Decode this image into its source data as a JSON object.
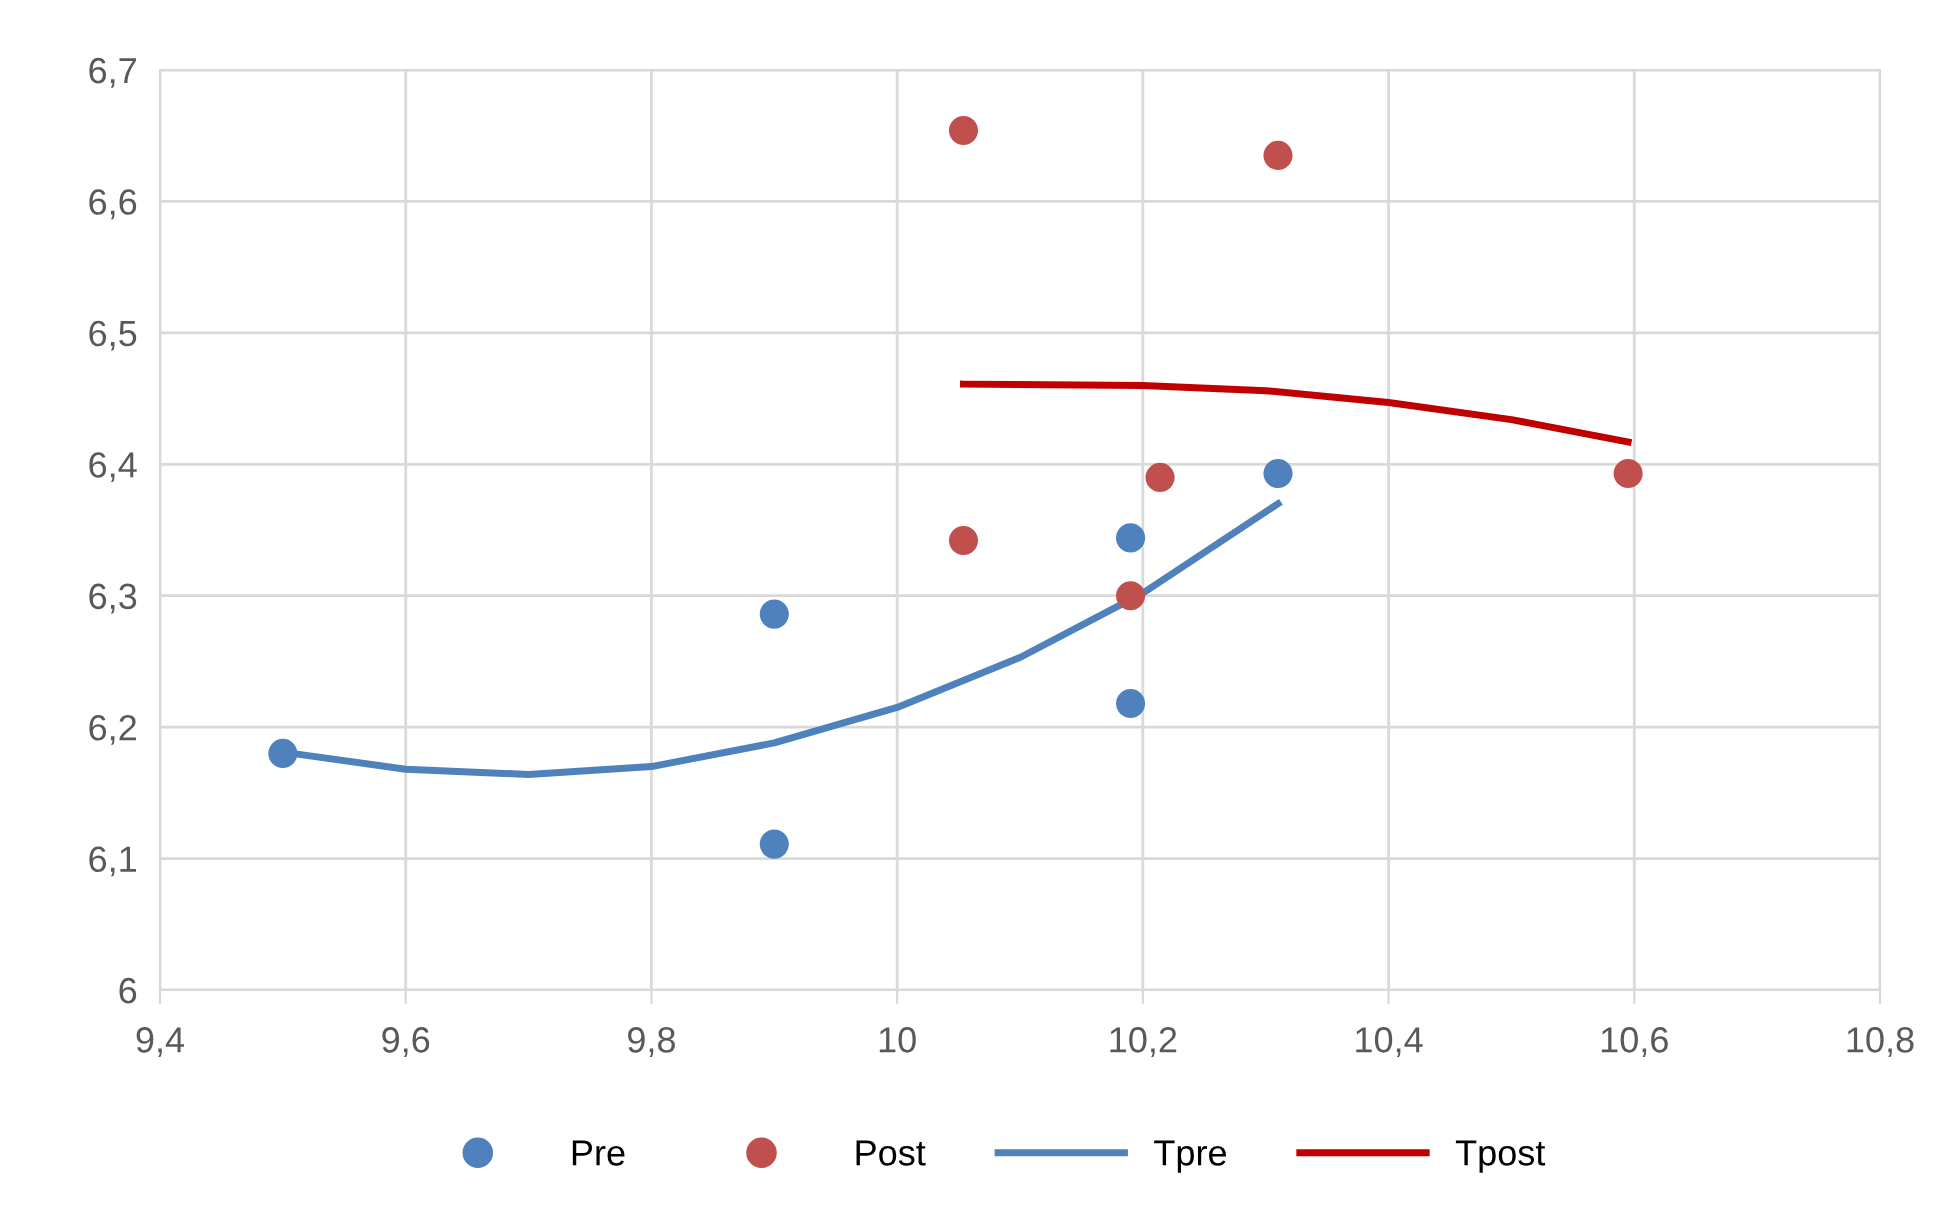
{
  "chart_data": {
    "type": "scatter",
    "xlim": [
      9.4,
      10.8
    ],
    "ylim": [
      6,
      6.7
    ],
    "xticks": [
      {
        "value": 9.4,
        "label": "9,4"
      },
      {
        "value": 9.6,
        "label": "9,6"
      },
      {
        "value": 9.8,
        "label": "9,8"
      },
      {
        "value": 10,
        "label": "10"
      },
      {
        "value": 10.2,
        "label": "10,2"
      },
      {
        "value": 10.4,
        "label": "10,4"
      },
      {
        "value": 10.6,
        "label": "10,6"
      },
      {
        "value": 10.8,
        "label": "10,8"
      }
    ],
    "yticks": [
      {
        "value": 6,
        "label": "6"
      },
      {
        "value": 6.1,
        "label": "6,1"
      },
      {
        "value": 6.2,
        "label": "6,2"
      },
      {
        "value": 6.3,
        "label": "6,3"
      },
      {
        "value": 6.4,
        "label": "6,4"
      },
      {
        "value": 6.5,
        "label": "6,5"
      },
      {
        "value": 6.6,
        "label": "6,6"
      },
      {
        "value": 6.7,
        "label": "6,7"
      }
    ],
    "grid": true,
    "legend": "bottom",
    "series": [
      {
        "name": "Pre",
        "marker": "circle",
        "color": "#4f81bd",
        "x": [
          9.5,
          9.9,
          9.9,
          10.19,
          10.19,
          10.31
        ],
        "values": [
          6.18,
          6.286,
          6.111,
          6.344,
          6.218,
          6.393
        ]
      },
      {
        "name": "Post",
        "marker": "circle",
        "color": "#c0504d",
        "x": [
          10.054,
          10.31,
          10.054,
          10.214,
          10.19,
          10.595
        ],
        "values": [
          6.654,
          6.635,
          6.342,
          6.39,
          6.3,
          6.393
        ]
      },
      {
        "name": "Tpre",
        "type": "line",
        "color": "#4f81bd",
        "x": [
          9.5,
          9.6,
          9.7,
          9.8,
          9.9,
          10.0,
          10.1,
          10.2,
          10.31
        ],
        "values": [
          6.181,
          6.168,
          6.164,
          6.17,
          6.188,
          6.215,
          6.253,
          6.302,
          6.37
        ]
      },
      {
        "name": "Tpost",
        "type": "line",
        "color": "#c00000",
        "x": [
          10.054,
          10.2,
          10.3,
          10.4,
          10.5,
          10.595
        ],
        "values": [
          6.461,
          6.46,
          6.456,
          6.447,
          6.434,
          6.417
        ]
      }
    ]
  }
}
